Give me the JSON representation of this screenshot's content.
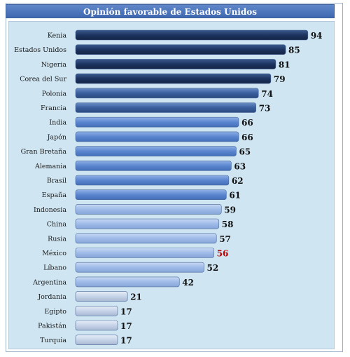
{
  "chart_data": {
    "type": "bar",
    "orientation": "horizontal",
    "title": "Opinión favorable de Estados Unidos",
    "categories": [
      "Kenia",
      "Estados Unidos",
      "Nigeria",
      "Corea del Sur",
      "Polonia",
      "Francia",
      "India",
      "Japón",
      "Gran Bretaña",
      "Alemania",
      "Brasil",
      "España",
      "Indonesia",
      "China",
      "Rusia",
      "México",
      "Líbano",
      "Argentina",
      "Jordania",
      "Egipto",
      "Pakistán",
      "Turquia"
    ],
    "values": [
      94,
      85,
      81,
      79,
      74,
      73,
      66,
      66,
      65,
      63,
      62,
      61,
      59,
      58,
      57,
      56,
      52,
      42,
      21,
      17,
      17,
      17
    ],
    "xlim": [
      0,
      100
    ],
    "grid": false,
    "legend": "none",
    "colors": {
      "top_group": "#1d3460",
      "second_group": "#3a5f9e",
      "mid_group": "#5b86cf",
      "light_group": "#9fbbe8",
      "lightest_group": "#c6d3e8",
      "highlight_label": "#c00000",
      "normal_label": "#111111",
      "background": "#cfe5f2"
    }
  }
}
